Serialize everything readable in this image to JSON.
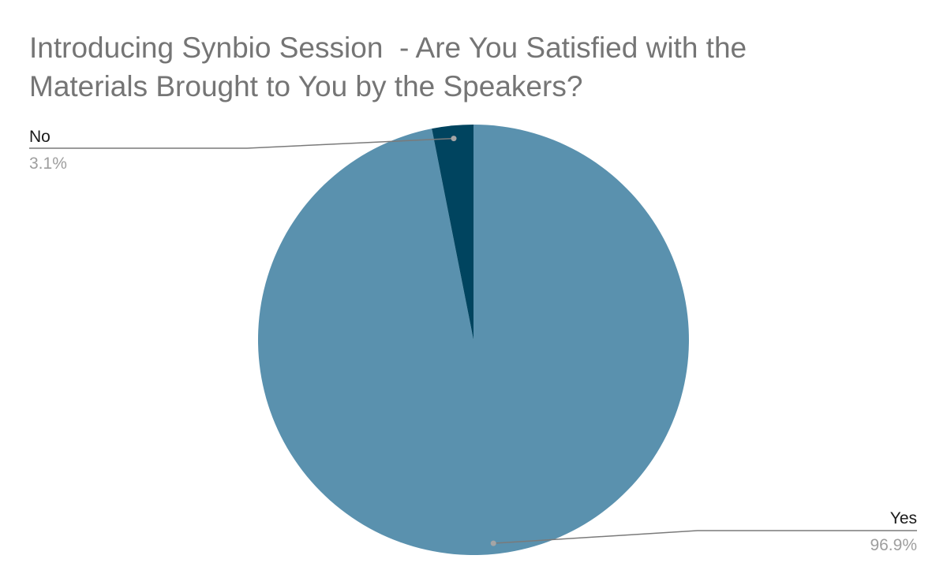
{
  "chart_data": {
    "type": "pie",
    "title": [
      "Introducing Synbio Session  - Are You Satisfied with the",
      "Materials Brought to You by the Speakers?"
    ],
    "slices": [
      {
        "label": "Yes",
        "value": 96.9,
        "value_label": "96.9%",
        "color": "#5a91ae"
      },
      {
        "label": "No",
        "value": 3.1,
        "value_label": "3.1%",
        "color": "#00445f"
      }
    ],
    "legend": "none",
    "label_style": "callout lines with category and percentage"
  }
}
